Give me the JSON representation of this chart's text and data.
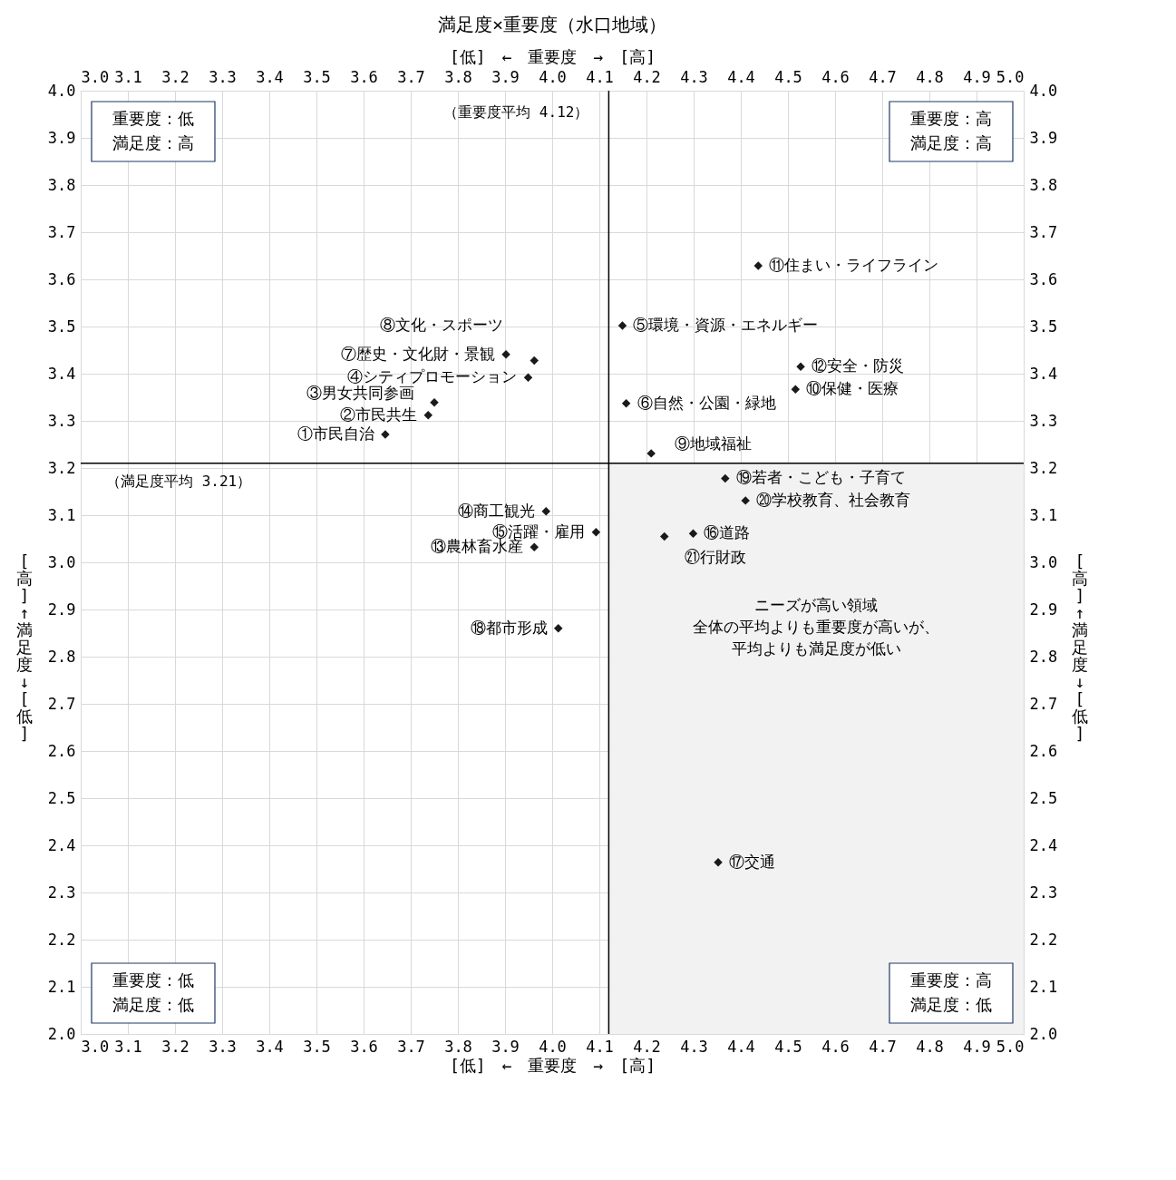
{
  "chart_data": {
    "type": "scatter",
    "title": "満足度×重要度（水口地域）",
    "xlabel": "[低]　←　重要度　→　[高]",
    "x2label": "[低]　←　重要度　→　[高]",
    "ylabel": "[高] ↑ 満足度 ↓ [低]",
    "y2label": "[高] ↑ 満足度 ↓ [低]",
    "xlim": [
      3,
      5
    ],
    "xticks": [
      {
        "value": 3,
        "label": "3.0"
      },
      3.1,
      3.2,
      3.3,
      3.4,
      3.5,
      3.6,
      3.7,
      3.8,
      3.9,
      {
        "value": 4,
        "label": "4.0"
      },
      4.1,
      4.2,
      4.3,
      4.4,
      4.5,
      4.6,
      4.7,
      4.8,
      4.9,
      {
        "value": 5,
        "label": "5.0"
      }
    ],
    "x2lim": [
      3,
      5
    ],
    "x2ticks": [
      {
        "value": 3,
        "label": "3.0"
      },
      3.1,
      3.2,
      3.3,
      3.4,
      3.5,
      3.6,
      3.7,
      3.8,
      3.9,
      {
        "value": 4,
        "label": "4.0"
      },
      4.1,
      4.2,
      4.3,
      4.4,
      4.5,
      4.6,
      4.7,
      4.8,
      4.9,
      {
        "value": 5,
        "label": "5.0"
      }
    ],
    "ylim": [
      2,
      4
    ],
    "yticks": [
      {
        "value": 2,
        "label": "2.0"
      },
      2.1,
      2.2,
      2.3,
      2.4,
      2.5,
      2.6,
      2.7,
      2.8,
      2.9,
      {
        "value": 3,
        "label": "3.0"
      },
      3.1,
      3.2,
      3.3,
      3.4,
      3.5,
      3.6,
      3.7,
      3.8,
      3.9,
      {
        "value": 4,
        "label": "4.0"
      }
    ],
    "y2lim": [
      2,
      4
    ],
    "y2ticks": [
      {
        "value": 2,
        "label": "2.0"
      },
      2.1,
      2.2,
      2.3,
      2.4,
      2.5,
      2.6,
      2.7,
      2.8,
      2.9,
      {
        "value": 3,
        "label": "3.0"
      },
      3.1,
      3.2,
      3.3,
      3.4,
      3.5,
      3.6,
      3.7,
      3.8,
      3.9,
      {
        "value": 4,
        "label": "4.0"
      }
    ],
    "grid": true,
    "marker": "diamond",
    "series": [
      {
        "color": "#1a1a1a",
        "x": [
          3.646,
          3.737,
          3.75,
          3.949,
          4.149,
          4.157,
          3.902,
          3.962,
          4.21,
          4.516,
          4.437,
          4.527,
          3.962,
          3.987,
          4.093,
          4.299,
          4.352,
          4.013,
          4.367,
          4.41,
          4.238
        ],
        "values": [
          3.271,
          3.312,
          3.339,
          3.392,
          3.502,
          3.337,
          3.441,
          3.428,
          3.231,
          3.367,
          3.629,
          3.415,
          3.032,
          3.108,
          3.064,
          3.061,
          2.364,
          2.86,
          3.178,
          3.131,
          3.055
        ]
      }
    ],
    "ref_lines": [
      {
        "axis": "x",
        "value": 4.12,
        "label": "（重要度平均 4.12）",
        "color": "#000000"
      },
      {
        "axis": "y",
        "value": 3.21,
        "label": "（満足度平均 3.21）",
        "color": "#000000"
      }
    ],
    "bands": [
      {
        "axis": "x",
        "from": 4.12,
        "to": 5,
        "label": "ニーズが高い領域",
        "color": "#f2f2f2"
      }
    ],
    "annotations": [
      {
        "text": "①市民自治",
        "x": 3.646,
        "y": 3.271
      },
      {
        "text": "②市民共生",
        "x": 3.737,
        "y": 3.312
      },
      {
        "text": "③男女共同参画",
        "x": 3.75,
        "y": 3.339
      },
      {
        "text": "④シティプロモーション",
        "x": 3.949,
        "y": 3.392
      },
      {
        "text": "⑤環境・資源・エネルギー",
        "x": 4.149,
        "y": 3.502
      },
      {
        "text": "⑥自然・公園・緑地",
        "x": 4.157,
        "y": 3.337
      },
      {
        "text": "⑦歴史・文化財・景観",
        "x": 3.902,
        "y": 3.441
      },
      {
        "text": "⑧文化・スポーツ",
        "x": 3.962,
        "y": 3.428
      },
      {
        "text": "⑨地域福祉",
        "x": 4.21,
        "y": 3.231
      },
      {
        "text": "⑩保健・医療",
        "x": 4.516,
        "y": 3.367
      },
      {
        "text": "⑪住まい・ライフライン",
        "x": 4.437,
        "y": 3.629
      },
      {
        "text": "⑫安全・防災",
        "x": 4.527,
        "y": 3.415
      },
      {
        "text": "⑬農林畜水産",
        "x": 3.962,
        "y": 3.032
      },
      {
        "text": "⑭商工観光",
        "x": 3.987,
        "y": 3.108
      },
      {
        "text": "⑮活躍・雇用",
        "x": 4.093,
        "y": 3.064
      },
      {
        "text": "⑯道路",
        "x": 4.299,
        "y": 3.061
      },
      {
        "text": "⑰交通",
        "x": 4.352,
        "y": 2.364
      },
      {
        "text": "⑱都市形成",
        "x": 4.013,
        "y": 2.86
      },
      {
        "text": "⑲若者・こども・子育て",
        "x": 4.367,
        "y": 3.178
      },
      {
        "text": "⑳学校教育、社会教育",
        "x": 4.41,
        "y": 3.131
      },
      {
        "text": "㉑行財政",
        "x": 4.238,
        "y": 3.055
      },
      "重要度：低",
      "満足度：高",
      "重要度：高",
      "満足度：高",
      "重要度：低",
      "満足度：低",
      "重要度：高",
      "満足度：低",
      "全体の平均よりも重要度が高いが、",
      "平均よりも満足度が低い"
    ]
  }
}
